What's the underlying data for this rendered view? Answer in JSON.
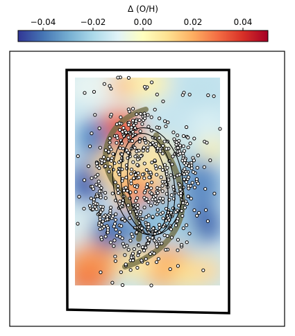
{
  "chart_data": {
    "type": "heatmap",
    "colorbar": {
      "label": "Δ (O/H)",
      "range": [
        -0.05,
        0.05
      ],
      "ticks": [
        -0.04,
        -0.02,
        0.0,
        0.02,
        0.04
      ],
      "tick_labels": [
        "−0.04",
        "−0.02",
        "0.00",
        "0.02",
        "0.04"
      ],
      "colormap": "RdYlBu_r",
      "colormap_stops": [
        "#313695",
        "#4575b4",
        "#74add1",
        "#abd9e9",
        "#e0f3f8",
        "#ffffbf",
        "#fee090",
        "#fdae61",
        "#f46d43",
        "#d73027",
        "#a50026"
      ]
    },
    "overlays": {
      "points": "scattered open circles (measurement positions)",
      "ellipses": 3,
      "spiral_arms": 2
    },
    "grid": false
  }
}
